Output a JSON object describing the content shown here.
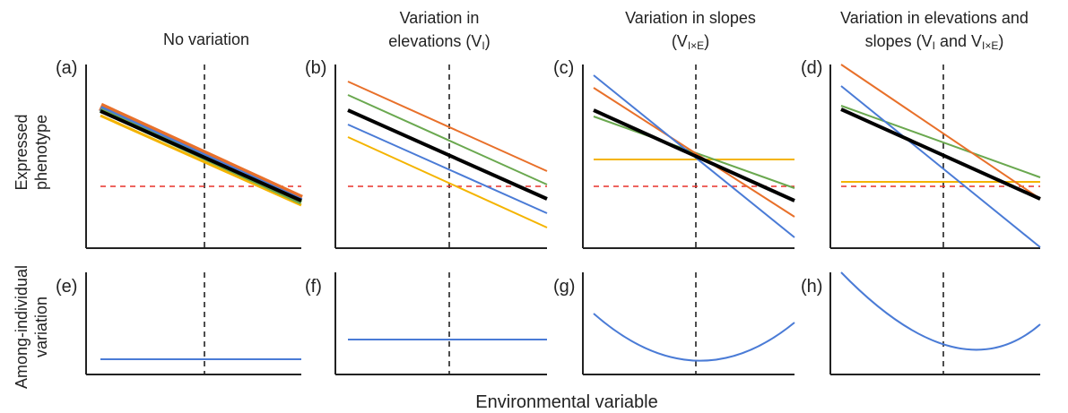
{
  "figure": {
    "x_axis_label": "Environmental variable",
    "y_axis_label_top": [
      "Expressed",
      "phenotype"
    ],
    "y_axis_label_bottom": [
      "Among-individual",
      "variation"
    ]
  },
  "columns": [
    {
      "title": [
        "No variation"
      ]
    },
    {
      "title": [
        "Variation in",
        "elevations (V",
        "I",
        ")"
      ]
    },
    {
      "title": [
        "Variation in slopes",
        "(V",
        "I×E",
        ")"
      ]
    },
    {
      "title": [
        "Variation in elevations and",
        "slopes (V",
        "I",
        " and V",
        "I×E",
        ")"
      ]
    }
  ],
  "panels": [
    {
      "label": "(a)"
    },
    {
      "label": "(b)"
    },
    {
      "label": "(c)"
    },
    {
      "label": "(d)"
    },
    {
      "label": "(e)"
    },
    {
      "label": "(f)"
    },
    {
      "label": "(g)"
    },
    {
      "label": "(h)"
    }
  ],
  "colors": {
    "mean": "#000000",
    "orange": "#e8702a",
    "green": "#6aa84f",
    "blue": "#4a7bd6",
    "yellow": "#f4b400",
    "threshold": "#e8302a",
    "axis": "#222222",
    "env_mean": "#222222"
  }
}
